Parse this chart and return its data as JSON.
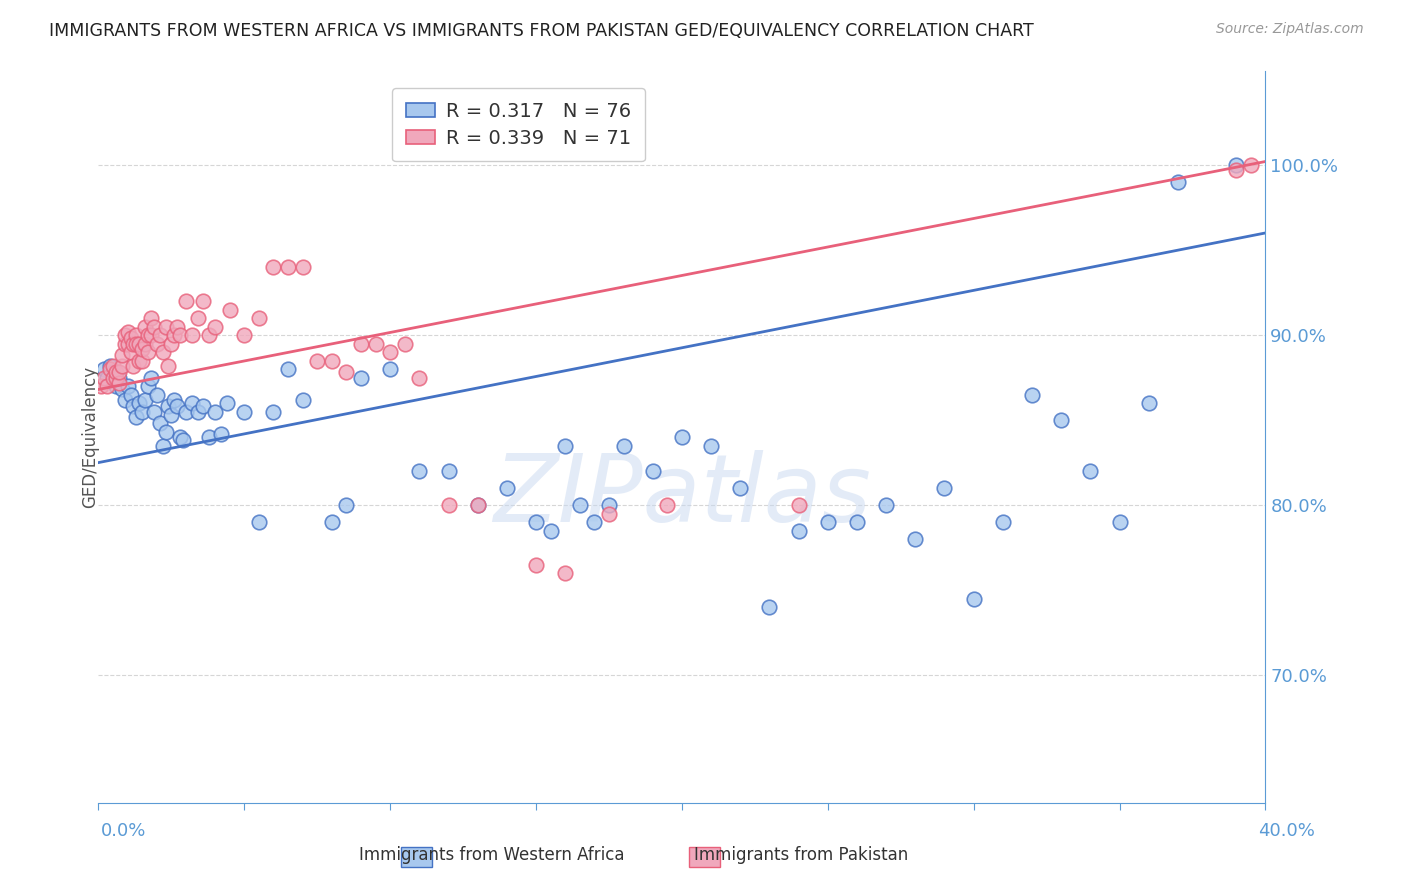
{
  "title": "IMMIGRANTS FROM WESTERN AFRICA VS IMMIGRANTS FROM PAKISTAN GED/EQUIVALENCY CORRELATION CHART",
  "source": "Source: ZipAtlas.com",
  "ylabel": "GED/Equivalency",
  "yticks": [
    0.7,
    0.8,
    0.9,
    1.0
  ],
  "ytick_labels": [
    "70.0%",
    "80.0%",
    "90.0%",
    "100.0%"
  ],
  "xlim": [
    0.0,
    0.4
  ],
  "ylim": [
    0.625,
    1.055
  ],
  "blue_R": "0.317",
  "blue_N": "76",
  "pink_R": "0.339",
  "pink_N": "71",
  "blue_color": "#A8C8EE",
  "pink_color": "#F0A8BC",
  "blue_line_color": "#4472C4",
  "pink_line_color": "#E8607A",
  "axis_color": "#5B9BD5",
  "watermark": "ZIPatlas",
  "blue_x": [
    0.002,
    0.003,
    0.004,
    0.005,
    0.006,
    0.007,
    0.008,
    0.009,
    0.01,
    0.011,
    0.012,
    0.013,
    0.014,
    0.015,
    0.016,
    0.017,
    0.018,
    0.019,
    0.02,
    0.021,
    0.022,
    0.023,
    0.024,
    0.025,
    0.026,
    0.027,
    0.028,
    0.029,
    0.03,
    0.032,
    0.034,
    0.036,
    0.038,
    0.04,
    0.042,
    0.044,
    0.05,
    0.055,
    0.06,
    0.065,
    0.07,
    0.08,
    0.085,
    0.09,
    0.1,
    0.11,
    0.12,
    0.13,
    0.14,
    0.15,
    0.155,
    0.16,
    0.165,
    0.17,
    0.175,
    0.18,
    0.19,
    0.2,
    0.21,
    0.22,
    0.23,
    0.24,
    0.25,
    0.26,
    0.27,
    0.28,
    0.29,
    0.3,
    0.31,
    0.32,
    0.33,
    0.34,
    0.35,
    0.36,
    0.37,
    0.39
  ],
  "blue_y": [
    0.88,
    0.875,
    0.882,
    0.878,
    0.87,
    0.875,
    0.868,
    0.862,
    0.87,
    0.865,
    0.858,
    0.852,
    0.86,
    0.855,
    0.862,
    0.87,
    0.875,
    0.855,
    0.865,
    0.848,
    0.835,
    0.843,
    0.858,
    0.853,
    0.862,
    0.858,
    0.84,
    0.838,
    0.855,
    0.86,
    0.855,
    0.858,
    0.84,
    0.855,
    0.842,
    0.86,
    0.855,
    0.79,
    0.855,
    0.88,
    0.862,
    0.79,
    0.8,
    0.875,
    0.88,
    0.82,
    0.82,
    0.8,
    0.81,
    0.79,
    0.785,
    0.835,
    0.8,
    0.79,
    0.8,
    0.835,
    0.82,
    0.84,
    0.835,
    0.81,
    0.74,
    0.785,
    0.79,
    0.79,
    0.8,
    0.78,
    0.81,
    0.745,
    0.79,
    0.865,
    0.85,
    0.82,
    0.79,
    0.86,
    0.99,
    1.0
  ],
  "pink_x": [
    0.001,
    0.002,
    0.003,
    0.004,
    0.005,
    0.005,
    0.006,
    0.006,
    0.007,
    0.007,
    0.008,
    0.008,
    0.009,
    0.009,
    0.01,
    0.01,
    0.011,
    0.011,
    0.012,
    0.012,
    0.013,
    0.013,
    0.014,
    0.014,
    0.015,
    0.015,
    0.016,
    0.016,
    0.017,
    0.017,
    0.018,
    0.018,
    0.019,
    0.02,
    0.021,
    0.022,
    0.023,
    0.024,
    0.025,
    0.026,
    0.027,
    0.028,
    0.03,
    0.032,
    0.034,
    0.036,
    0.038,
    0.04,
    0.045,
    0.05,
    0.055,
    0.06,
    0.065,
    0.07,
    0.075,
    0.08,
    0.085,
    0.09,
    0.095,
    0.1,
    0.105,
    0.11,
    0.12,
    0.13,
    0.15,
    0.16,
    0.175,
    0.195,
    0.24,
    0.39,
    0.395
  ],
  "pink_y": [
    0.87,
    0.875,
    0.87,
    0.88,
    0.875,
    0.882,
    0.875,
    0.878,
    0.872,
    0.878,
    0.882,
    0.888,
    0.895,
    0.9,
    0.895,
    0.902,
    0.89,
    0.898,
    0.882,
    0.895,
    0.9,
    0.895,
    0.885,
    0.895,
    0.885,
    0.892,
    0.905,
    0.895,
    0.89,
    0.9,
    0.9,
    0.91,
    0.905,
    0.895,
    0.9,
    0.89,
    0.905,
    0.882,
    0.895,
    0.9,
    0.905,
    0.9,
    0.92,
    0.9,
    0.91,
    0.92,
    0.9,
    0.905,
    0.915,
    0.9,
    0.91,
    0.94,
    0.94,
    0.94,
    0.885,
    0.885,
    0.878,
    0.895,
    0.895,
    0.89,
    0.895,
    0.875,
    0.8,
    0.8,
    0.765,
    0.76,
    0.795,
    0.8,
    0.8,
    0.997,
    1.0
  ]
}
